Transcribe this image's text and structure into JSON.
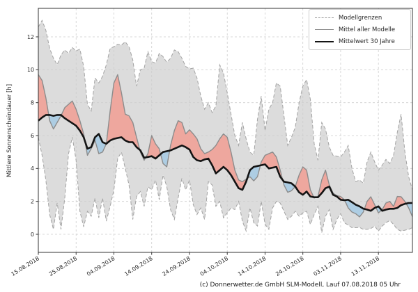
{
  "chart_data": {
    "type": "line",
    "title": "",
    "ylabel": "Mittlere Sonnenscheindauer [h]",
    "xlabel": "",
    "caption": "(c) Donnerwetter.de GmbH SLM-Modell, Lauf 07.08.2018 05 Uhr",
    "grid": true,
    "legend_position": "upper right",
    "legend": [
      "Modellgrenzen",
      "Mittel aller Modelle",
      "Mittelwert 30 Jahre"
    ],
    "legend_styles": [
      {
        "type": "dashed",
        "color": "#a3a3a3",
        "width": 1
      },
      {
        "type": "solid",
        "color": "#8c8c8c",
        "width": 1.5
      },
      {
        "type": "solid",
        "color": "#141414",
        "width": 2.5
      }
    ],
    "x_unit": "days since 15.08.2018, daily values",
    "xtick_positions": [
      0,
      10,
      20,
      30,
      40,
      50,
      60,
      70,
      80,
      90
    ],
    "xtick_labels": [
      "15.08.2018",
      "25.08.2018",
      "04.09.2018",
      "14.09.2018",
      "24.09.2018",
      "04.10.2018",
      "14.10.2018",
      "24.10.2018",
      "03.11.2018",
      "13.11.2018"
    ],
    "yticks": [
      0,
      2,
      4,
      6,
      8,
      10,
      12
    ],
    "ylim": [
      -1.1,
      13.8
    ],
    "colors": {
      "band_fill": "#dcdcdc",
      "band_edge": "#a3a3a3",
      "model_mean_line": "#8c8c8c",
      "climate_mean_line": "#141414",
      "above_fill": "#eea79e",
      "below_fill": "#adcde3",
      "grid": "#cdcdcd",
      "spine": "#333333"
    },
    "series": [
      {
        "name": "Modellgrenzen (oberes Limit)",
        "role": "model_max",
        "style": "dashed",
        "values": [
          12.6,
          13.0,
          12.4,
          11.3,
          10.7,
          10.3,
          10.9,
          11.2,
          11.0,
          11.35,
          11.15,
          11.25,
          10.2,
          7.9,
          7.5,
          9.5,
          9.2,
          9.6,
          10.3,
          11.3,
          11.4,
          11.55,
          11.5,
          11.7,
          11.4,
          10.6,
          9.0,
          10.0,
          10.1,
          11.1,
          10.5,
          10.4,
          11.0,
          10.8,
          10.45,
          10.7,
          11.2,
          11.1,
          10.7,
          10.2,
          10.05,
          10.1,
          9.5,
          8.4,
          7.6,
          8.0,
          7.4,
          7.8,
          10.3,
          9.8,
          8.6,
          7.3,
          6.0,
          5.4,
          6.8,
          5.8,
          5.0,
          4.8,
          7.0,
          8.4,
          6.3,
          7.6,
          8.0,
          9.2,
          9.0,
          7.2,
          5.4,
          5.9,
          6.5,
          8.0,
          9.0,
          9.4,
          8.2,
          5.5,
          4.5,
          6.8,
          6.4,
          5.3,
          4.8,
          4.75,
          4.7,
          5.0,
          5.4,
          4.0,
          3.2,
          3.3,
          3.1,
          4.4,
          5.0,
          4.4,
          3.9,
          4.2,
          4.55,
          4.3,
          4.8,
          6.2,
          7.3,
          5.0,
          3.5,
          2.7
        ]
      },
      {
        "name": "Modellgrenzen (unteres Limit)",
        "role": "model_min",
        "style": "dashed",
        "values": [
          5.9,
          4.8,
          3.3,
          1.2,
          0.3,
          1.9,
          0.3,
          2.2,
          4.9,
          5.9,
          4.5,
          1.4,
          0.45,
          1.4,
          1.1,
          2.2,
          1.0,
          2.2,
          0.8,
          1.7,
          2.7,
          4.6,
          5.0,
          4.0,
          3.0,
          0.9,
          2.3,
          2.6,
          1.7,
          2.9,
          2.7,
          3.3,
          2.1,
          3.6,
          2.9,
          1.5,
          0.9,
          2.2,
          3.4,
          2.7,
          3.3,
          1.8,
          1.2,
          1.6,
          0.9,
          3.2,
          3.0,
          1.7,
          2.0,
          1.0,
          1.3,
          1.6,
          1.5,
          2.0,
          0.8,
          0.2,
          1.6,
          0.7,
          0.5,
          2.0,
          0.6,
          0.3,
          1.6,
          2.0,
          1.9,
          1.4,
          0.9,
          1.1,
          1.4,
          1.1,
          1.3,
          1.4,
          0.6,
          1.2,
          1.7,
          0.1,
          1.1,
          1.5,
          0.3,
          0.9,
          1.25,
          0.7,
          0.56,
          0.4,
          0.4,
          0.42,
          0.3,
          0.3,
          0.35,
          0.5,
          0.2,
          0.5,
          0.7,
          0.84,
          0.6,
          0.3,
          0.2,
          0.25,
          0.3,
          0.4
        ]
      },
      {
        "name": "Mittel aller Modelle",
        "role": "model_mean",
        "style": "solid",
        "values": [
          9.7,
          9.35,
          8.3,
          6.9,
          6.4,
          6.8,
          7.2,
          7.7,
          7.9,
          8.1,
          7.6,
          6.9,
          6.1,
          4.8,
          5.2,
          5.7,
          4.9,
          5.0,
          5.5,
          7.5,
          9.2,
          9.7,
          8.6,
          7.3,
          7.2,
          6.8,
          5.9,
          5.0,
          4.5,
          4.9,
          6.0,
          5.5,
          5.2,
          4.3,
          4.1,
          5.4,
          6.3,
          6.9,
          6.8,
          6.1,
          6.35,
          6.1,
          5.8,
          5.2,
          4.9,
          5.0,
          5.15,
          5.4,
          5.8,
          6.1,
          5.9,
          5.0,
          3.9,
          3.3,
          3.2,
          3.35,
          3.5,
          3.25,
          3.5,
          4.4,
          4.8,
          4.9,
          5.0,
          4.7,
          3.9,
          3.0,
          2.55,
          2.65,
          2.9,
          3.6,
          4.1,
          3.9,
          2.7,
          2.2,
          2.3,
          3.3,
          3.9,
          3.0,
          2.5,
          2.35,
          2.3,
          2.1,
          1.6,
          1.35,
          1.25,
          1.06,
          1.35,
          2.0,
          2.28,
          1.8,
          1.3,
          1.5,
          1.9,
          2.0,
          1.7,
          2.3,
          2.28,
          2.0,
          1.6,
          1.07
        ]
      },
      {
        "name": "Mittelwert 30 Jahre",
        "role": "climate_mean",
        "style": "solid",
        "values": [
          6.9,
          7.1,
          7.25,
          7.25,
          7.2,
          7.25,
          7.25,
          7.05,
          6.9,
          6.75,
          6.6,
          6.3,
          5.9,
          5.2,
          5.3,
          5.9,
          6.1,
          5.6,
          5.5,
          5.7,
          5.8,
          5.85,
          5.9,
          5.7,
          5.6,
          5.6,
          5.3,
          5.1,
          4.65,
          4.7,
          4.75,
          4.6,
          4.8,
          5.0,
          5.05,
          5.1,
          5.2,
          5.3,
          5.4,
          5.3,
          5.15,
          4.7,
          4.5,
          4.45,
          4.55,
          4.6,
          4.2,
          3.7,
          3.9,
          4.1,
          3.9,
          3.6,
          3.2,
          2.8,
          2.7,
          3.2,
          3.9,
          4.1,
          4.15,
          4.2,
          4.25,
          4.0,
          4.05,
          4.1,
          3.5,
          3.2,
          3.15,
          3.1,
          2.9,
          2.55,
          2.4,
          2.6,
          2.3,
          2.25,
          2.25,
          2.5,
          2.8,
          2.9,
          2.4,
          2.3,
          2.1,
          2.07,
          2.1,
          1.95,
          1.8,
          1.7,
          1.56,
          1.5,
          1.43,
          1.6,
          1.7,
          1.43,
          1.5,
          1.55,
          1.55,
          1.6,
          1.77,
          1.85,
          1.9,
          1.9
        ]
      }
    ]
  }
}
